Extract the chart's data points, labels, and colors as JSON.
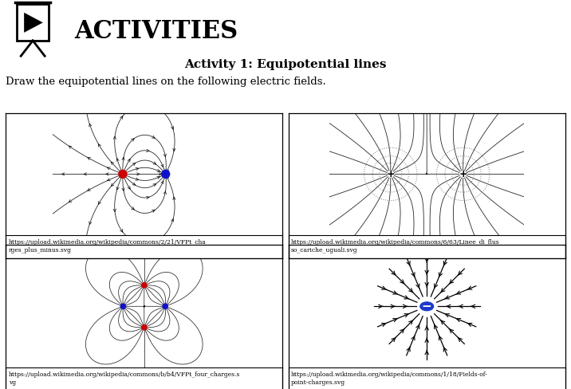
{
  "title": "ACTIVITIES",
  "subtitle": "Activity 1: Equipotential lines",
  "instruction": "Draw the equipotential lines on the following electric fields.",
  "urls": [
    "https://upload.wikimedia.org/wikipedia/commons/2/21/VFPt_cha\nrges_plus_minus.svg",
    "https://upload.wikimedia.org/wikipedia/commons/6/63/Linee_di_flus\nso_cariche_uguali.svg",
    "https://upload.wikimedia.org/wikipedia/commons/b/b4/VFPt_four_charges.s\nvg",
    "https://upload.wikimedia.org/wikipedia/commons/1/18/Fields-of-\npoint-charges.svg"
  ],
  "bg_color": "#ffffff",
  "gray_bg": "#d3d3d3"
}
